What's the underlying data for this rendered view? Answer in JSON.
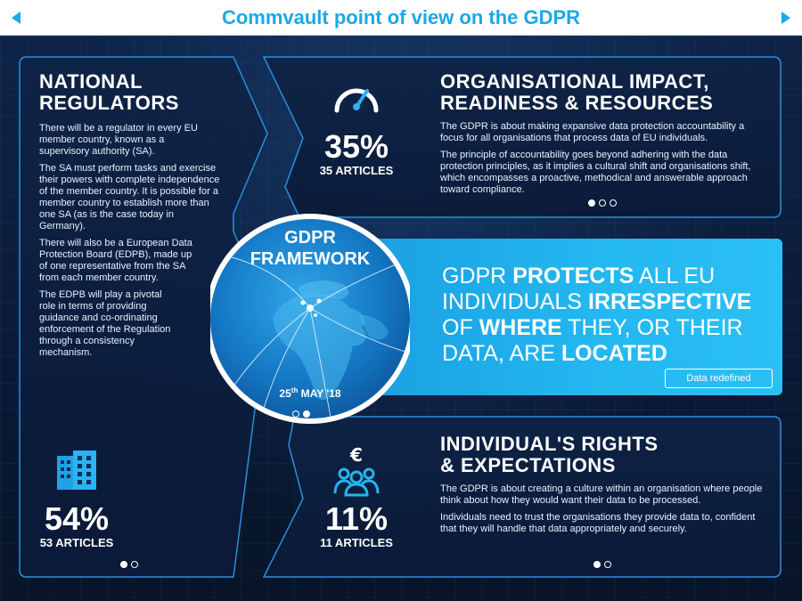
{
  "header": {
    "title": "Commvault point of view on the GDPR",
    "prev_icon": "triangle-left-icon",
    "next_icon": "triangle-right-icon"
  },
  "colors": {
    "accent": "#1aa8e6",
    "background": "#0b1a33",
    "banner": "#23b6f0",
    "frame": "#2a8fd8"
  },
  "regulators": {
    "title_line1": "NATIONAL",
    "title_line2": "REGULATORS",
    "paragraphs": [
      "There will be a regulator in every EU member country, known as a supervisory authority (SA).",
      "The SA must perform tasks and exercise their powers with complete independence of the member country. It is possible for a member country to establish more than one SA (as is the case today in Germany).",
      "There will also be a European Data Protection Board (EDPB), made up of one representative from the SA from each member country.",
      "The EDPB will play a pivotal role in terms of providing guidance and co-ordinating enforcement of the Regulation through a consistency mechanism."
    ],
    "stat_icon": "buildings-icon",
    "stat_percent": "54%",
    "stat_articles": "53 ARTICLES"
  },
  "organisational": {
    "title_line1": "ORGANISATIONAL IMPACT,",
    "title_line2": "READINESS & RESOURCES",
    "paragraphs": [
      "The GDPR is about making expansive data protection accountability a focus for all organisations that process data of EU individuals.",
      "The principle of accountability goes beyond adhering with the data protection principles, as it implies a cultural shift and organisations shift, which encompasses a proactive, methodical and answerable approach toward compliance."
    ],
    "stat_icon": "speedometer-icon",
    "stat_percent": "35%",
    "stat_articles": "35 ARTICLES"
  },
  "banner": {
    "w1": "GDPR",
    "w2": "PROTECTS",
    "w3": "ALL EU",
    "w4": "INDIVIDUALS",
    "w5": "IRRESPECTIVE",
    "w6": "OF",
    "w7": "WHERE",
    "w8": "THEY, OR THEIR",
    "w9": "DATA, ARE",
    "w10": "LOCATED",
    "button_label": "Data redefined"
  },
  "framework": {
    "title_line1": "GDPR",
    "title_line2": "FRAMEWORK",
    "date_day": "25",
    "date_suffix": "th",
    "date_rest": " MAY '18"
  },
  "rights": {
    "title_line1": "INDIVIDUAL'S RIGHTS",
    "title_line2": "& EXPECTATIONS",
    "paragraphs": [
      "The GDPR is about creating a culture within an organisation where people think about how they would want their data to be processed.",
      "Individuals need to trust the organisations they provide data to, confident that they will handle that data appropriately and securely."
    ],
    "stat_icon": "euro-people-icon",
    "stat_percent": "11%",
    "stat_articles": "11 ARTICLES"
  },
  "pagers": {
    "regulators": [
      true,
      false
    ],
    "organisational": [
      true,
      false,
      false
    ],
    "framework": [
      false,
      true
    ],
    "rights": [
      true,
      false
    ]
  }
}
